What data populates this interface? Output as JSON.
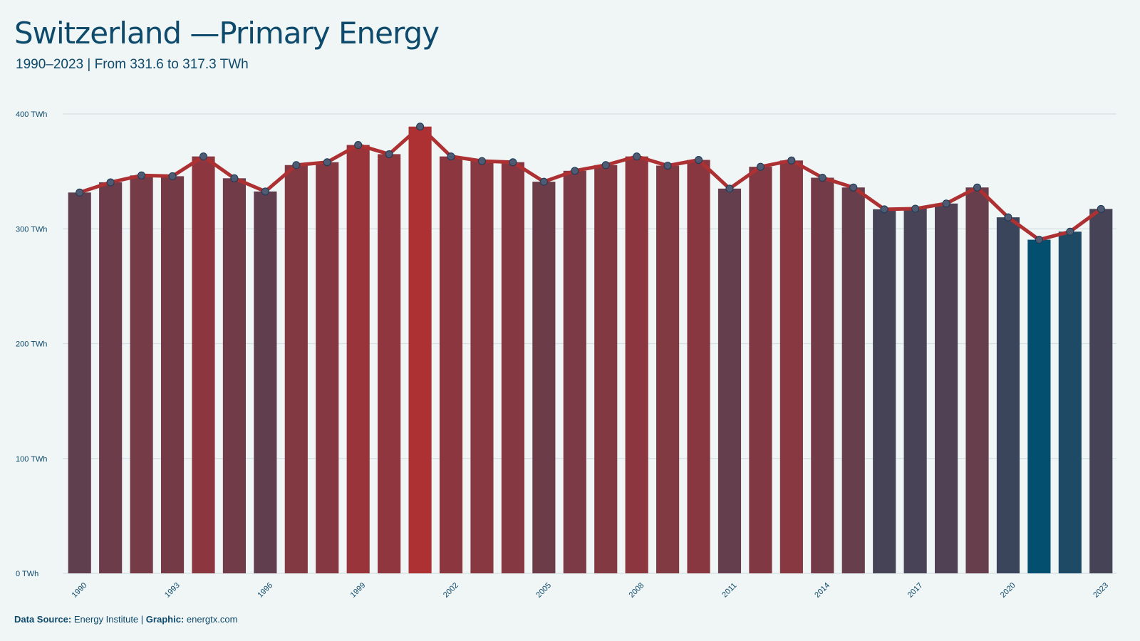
{
  "title": "Switzerland —Primary Energy",
  "subtitle": "1990–2023 | From 331.6 to 317.3 TWh",
  "footer": {
    "source_label": "Data Source:",
    "source_value": "Energy Institute",
    "separator": "|",
    "graphic_label": "Graphic:",
    "graphic_value": "energtx.com"
  },
  "colors": {
    "high": "#ad3133",
    "low": "#034f6f",
    "line": "#ad3133",
    "marker_fill": "#4f5a73",
    "marker_stroke": "#1a3a55",
    "grid": "#d6dfe2",
    "text": "#0e4a6b"
  },
  "chart_data": {
    "type": "bar",
    "overlay": "line",
    "unit": "TWh",
    "ylim": [
      0,
      400
    ],
    "yticks": [
      0,
      100,
      200,
      300,
      400
    ],
    "ytick_labels": [
      "0 TWh",
      "100 TWh",
      "200 TWh",
      "300 TWh",
      "400 TWh"
    ],
    "grid": true,
    "categories": [
      1990,
      1991,
      1992,
      1993,
      1994,
      1995,
      1996,
      1997,
      1998,
      1999,
      2000,
      2001,
      2002,
      2003,
      2004,
      2005,
      2006,
      2007,
      2008,
      2009,
      2010,
      2011,
      2012,
      2013,
      2014,
      2015,
      2016,
      2017,
      2018,
      2019,
      2020,
      2021,
      2022,
      2023
    ],
    "xtick_labels": [
      "1990",
      "1993",
      "1996",
      "1999",
      "2002",
      "2005",
      "2008",
      "2011",
      "2014",
      "2017",
      "2020",
      "2023"
    ],
    "values": [
      331.6,
      340.5,
      346.5,
      345.8,
      363.0,
      344.0,
      332.5,
      355.5,
      358.0,
      373.0,
      365.0,
      389.0,
      363.0,
      359.0,
      358.0,
      341.0,
      350.5,
      355.5,
      363.0,
      355.0,
      360.0,
      335.0,
      354.0,
      359.5,
      344.5,
      336.0,
      317.0,
      317.5,
      322.0,
      336.0,
      310.0,
      290.5,
      297.5,
      317.3
    ]
  }
}
